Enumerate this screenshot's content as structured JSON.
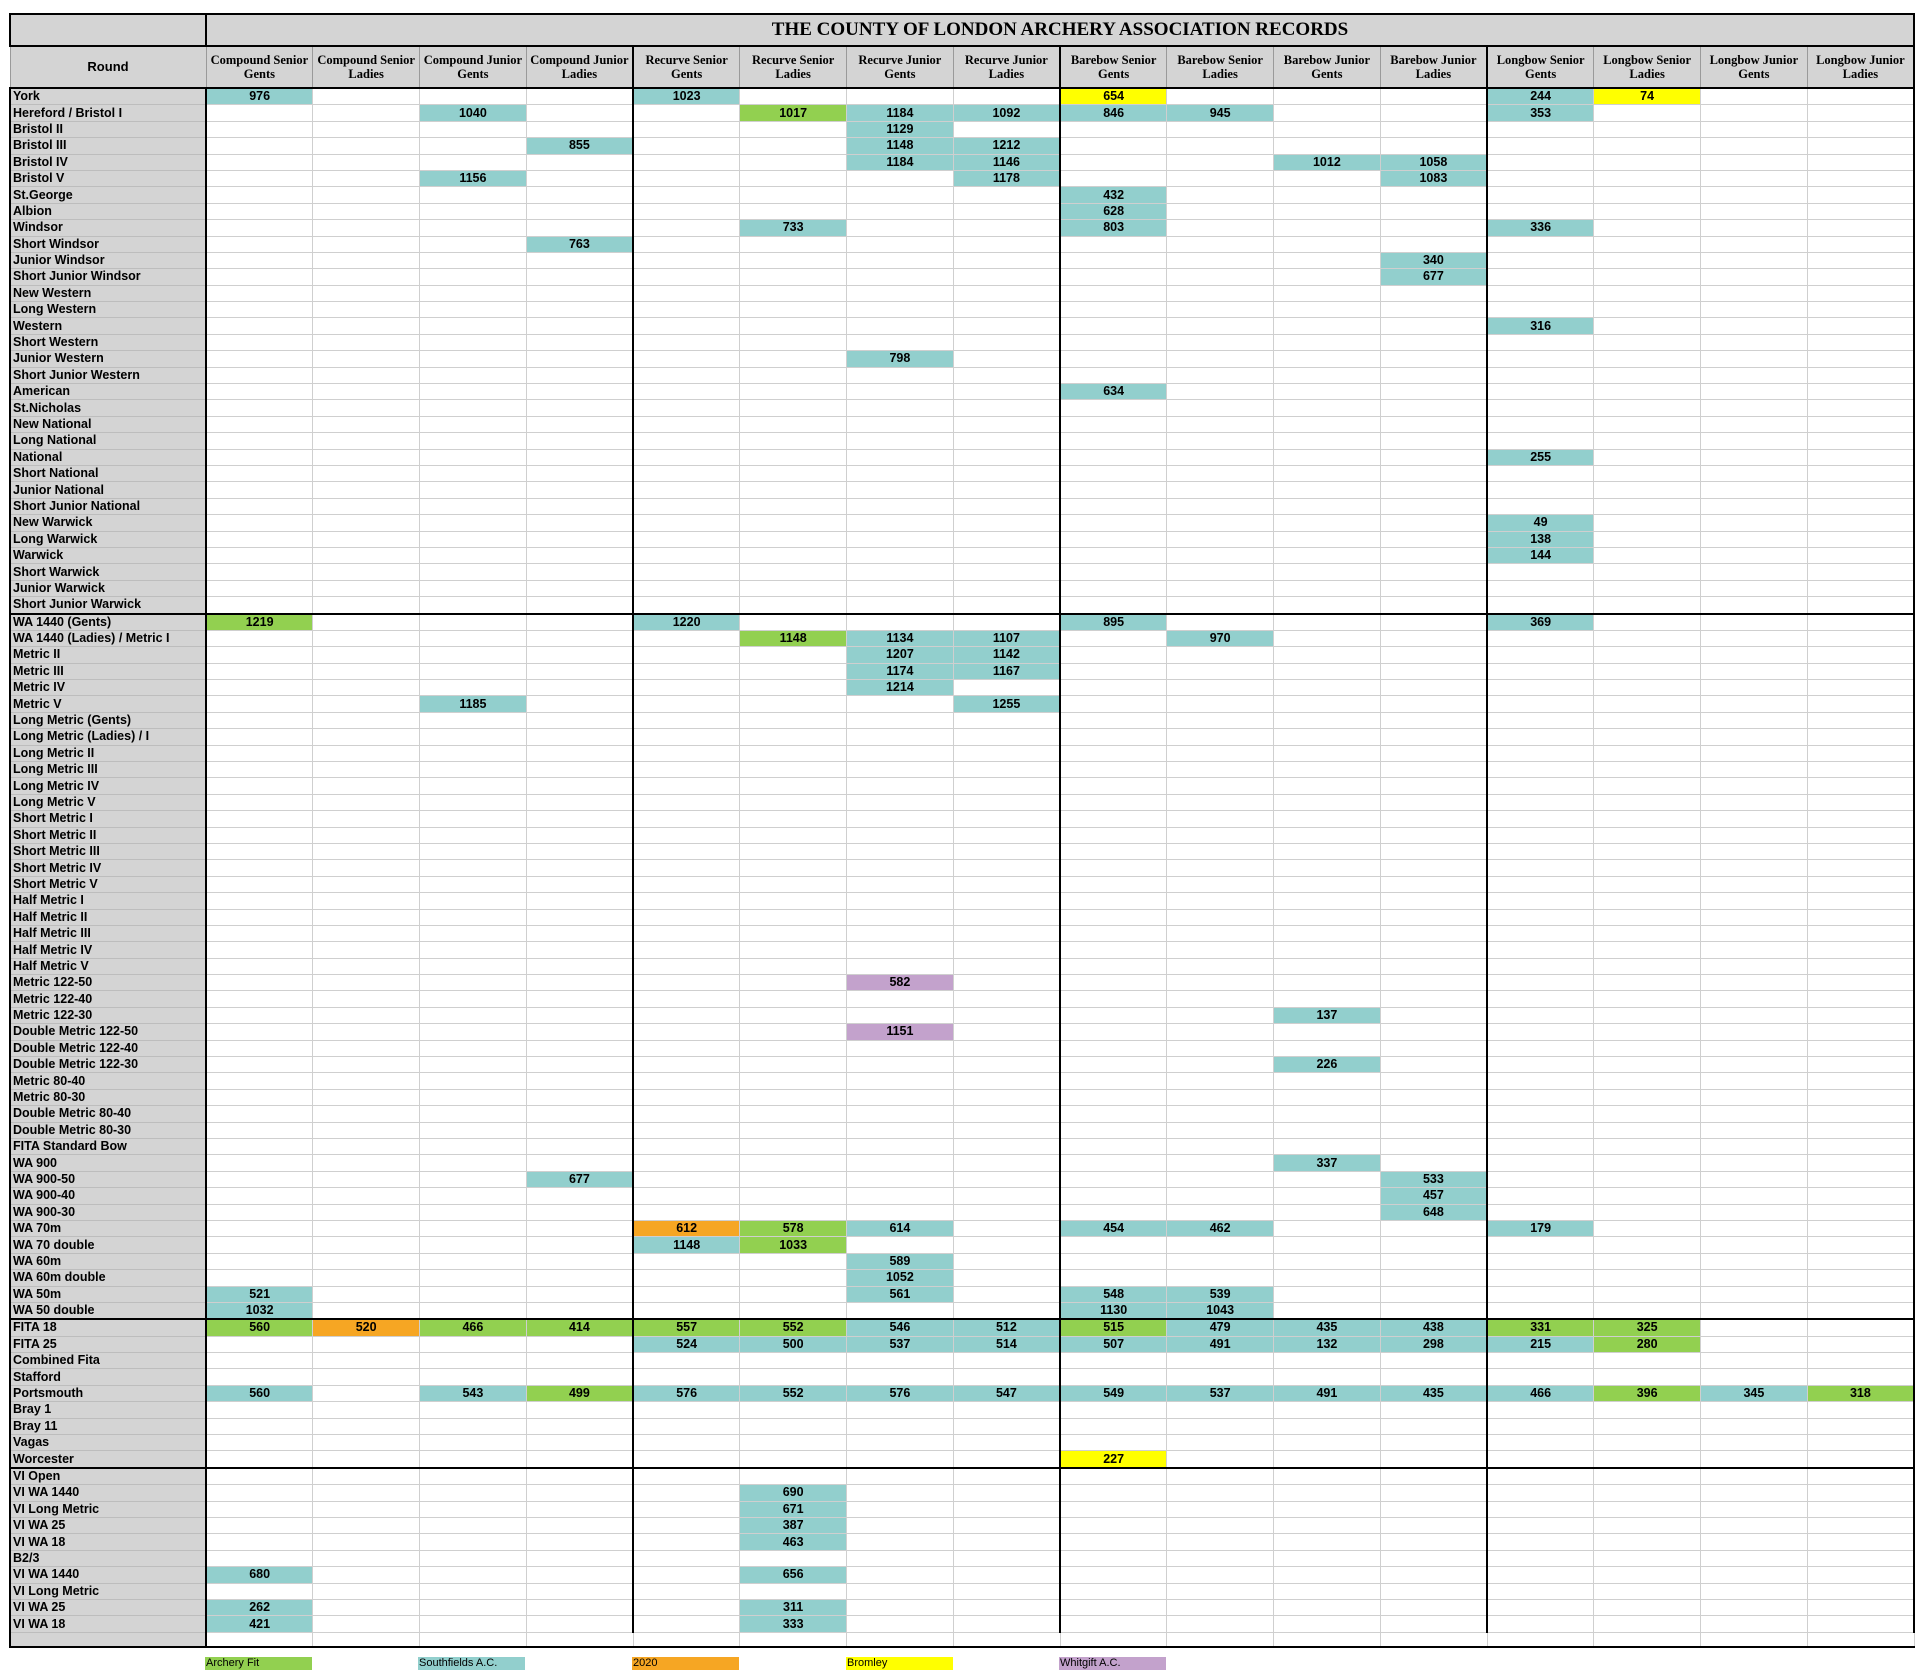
{
  "title": "THE COUNTY OF LONDON ARCHERY ASSOCIATION RECORDS",
  "round_header": "Round",
  "columns": [
    "Compound Senior Gents",
    "Compound Senior Ladies",
    "Compound Junior Gents",
    "Compound Junior Ladies",
    "Recurve Senior Gents",
    "Recurve Senior Ladies",
    "Recurve Junior Gents",
    "Recurve Junior Ladies",
    "Barebow Senior Gents",
    "Barebow Senior Ladies",
    "Barebow Junior Gents",
    "Barebow Junior Ladies",
    "Longbow Senior Gents",
    "Longbow Senior Ladies",
    "Longbow Junior Gents",
    "Longbow Junior Ladies"
  ],
  "club_colors": {
    "A": "#92d050",
    "S": "#92cfcd",
    "T": "#f6a623",
    "B": "#ffff00",
    "W": "#c3a2cc"
  },
  "legend": [
    {
      "code": "A",
      "label": "Archery Fit"
    },
    {
      "code": "S",
      "label": "Southfields A.C."
    },
    {
      "code": "T",
      "label": "2020"
    },
    {
      "code": "B",
      "label": "Bromley"
    },
    {
      "code": "W",
      "label": "Whitgift A.C."
    }
  ],
  "rows": [
    {
      "round": "York",
      "cells": {
        "0": [
          "976",
          "S"
        ],
        "4": [
          "1023",
          "S"
        ],
        "8": [
          "654",
          "B"
        ],
        "12": [
          "244",
          "S"
        ],
        "13": [
          "74",
          "B"
        ]
      }
    },
    {
      "round": "Hereford / Bristol I",
      "cells": {
        "2": [
          "1040",
          "S"
        ],
        "5": [
          "1017",
          "A"
        ],
        "6": [
          "1184",
          "S"
        ],
        "7": [
          "1092",
          "S"
        ],
        "8": [
          "846",
          "S"
        ],
        "9": [
          "945",
          "S"
        ],
        "12": [
          "353",
          "S"
        ]
      }
    },
    {
      "round": "Bristol II",
      "cells": {
        "6": [
          "1129",
          "S"
        ]
      }
    },
    {
      "round": "Bristol III",
      "cells": {
        "3": [
          "855",
          "S"
        ],
        "6": [
          "1148",
          "S"
        ],
        "7": [
          "1212",
          "S"
        ]
      }
    },
    {
      "round": "Bristol IV",
      "cells": {
        "6": [
          "1184",
          "S"
        ],
        "7": [
          "1146",
          "S"
        ],
        "10": [
          "1012",
          "S"
        ],
        "11": [
          "1058",
          "S"
        ]
      }
    },
    {
      "round": "Bristol V",
      "cells": {
        "2": [
          "1156",
          "S"
        ],
        "7": [
          "1178",
          "S"
        ],
        "11": [
          "1083",
          "S"
        ]
      }
    },
    {
      "round": "St.George",
      "cells": {
        "8": [
          "432",
          "S"
        ]
      }
    },
    {
      "round": "Albion",
      "cells": {
        "8": [
          "628",
          "S"
        ]
      }
    },
    {
      "round": "Windsor",
      "cells": {
        "5": [
          "733",
          "S"
        ],
        "8": [
          "803",
          "S"
        ],
        "12": [
          "336",
          "S"
        ]
      }
    },
    {
      "round": "Short Windsor",
      "cells": {
        "3": [
          "763",
          "S"
        ]
      }
    },
    {
      "round": "Junior Windsor",
      "cells": {
        "11": [
          "340",
          "S"
        ]
      }
    },
    {
      "round": "Short Junior Windsor",
      "cells": {
        "11": [
          "677",
          "S"
        ]
      }
    },
    {
      "round": "New Western",
      "cells": {}
    },
    {
      "round": "Long Western",
      "cells": {}
    },
    {
      "round": "Western",
      "cells": {
        "12": [
          "316",
          "S"
        ]
      }
    },
    {
      "round": "Short Western",
      "cells": {}
    },
    {
      "round": "Junior Western",
      "cells": {
        "6": [
          "798",
          "S"
        ]
      }
    },
    {
      "round": "Short Junior Western",
      "cells": {}
    },
    {
      "round": "American",
      "cells": {
        "8": [
          "634",
          "S"
        ]
      }
    },
    {
      "round": "St.Nicholas",
      "cells": {}
    },
    {
      "round": "New National",
      "cells": {}
    },
    {
      "round": "Long National",
      "cells": {}
    },
    {
      "round": "National",
      "cells": {
        "12": [
          "255",
          "S"
        ]
      }
    },
    {
      "round": "Short National",
      "cells": {}
    },
    {
      "round": "Junior National",
      "cells": {}
    },
    {
      "round": "Short Junior National",
      "cells": {}
    },
    {
      "round": "New Warwick",
      "cells": {
        "12": [
          "49",
          "S"
        ]
      }
    },
    {
      "round": "Long Warwick",
      "cells": {
        "12": [
          "138",
          "S"
        ]
      }
    },
    {
      "round": "Warwick",
      "cells": {
        "12": [
          "144",
          "S"
        ]
      }
    },
    {
      "round": "Short Warwick",
      "cells": {}
    },
    {
      "round": "Junior Warwick",
      "cells": {}
    },
    {
      "round": "Short Junior Warwick",
      "cells": {}
    },
    {
      "round": "WA 1440 (Gents)",
      "section_start": true,
      "cells": {
        "0": [
          "1219",
          "A"
        ],
        "4": [
          "1220",
          "S"
        ],
        "8": [
          "895",
          "S"
        ],
        "12": [
          "369",
          "S"
        ]
      }
    },
    {
      "round": "WA 1440 (Ladies) / Metric I",
      "cells": {
        "5": [
          "1148",
          "A"
        ],
        "6": [
          "1134",
          "S"
        ],
        "7": [
          "1107",
          "S"
        ],
        "9": [
          "970",
          "S"
        ]
      }
    },
    {
      "round": "Metric II",
      "cells": {
        "6": [
          "1207",
          "S"
        ],
        "7": [
          "1142",
          "S"
        ]
      }
    },
    {
      "round": "Metric III",
      "cells": {
        "6": [
          "1174",
          "S"
        ],
        "7": [
          "1167",
          "S"
        ]
      }
    },
    {
      "round": "Metric IV",
      "cells": {
        "6": [
          "1214",
          "S"
        ]
      }
    },
    {
      "round": "Metric V",
      "cells": {
        "2": [
          "1185",
          "S"
        ],
        "7": [
          "1255",
          "S"
        ]
      }
    },
    {
      "round": "Long Metric (Gents)",
      "cells": {}
    },
    {
      "round": "Long Metric (Ladies) / I",
      "cells": {}
    },
    {
      "round": "Long Metric II",
      "cells": {}
    },
    {
      "round": "Long Metric III",
      "cells": {}
    },
    {
      "round": "Long Metric IV",
      "cells": {}
    },
    {
      "round": "Long Metric V",
      "cells": {}
    },
    {
      "round": "Short Metric I",
      "cells": {}
    },
    {
      "round": "Short Metric II",
      "cells": {}
    },
    {
      "round": "Short Metric III",
      "cells": {}
    },
    {
      "round": "Short Metric IV",
      "cells": {}
    },
    {
      "round": "Short Metric V",
      "cells": {}
    },
    {
      "round": "Half Metric I",
      "cells": {}
    },
    {
      "round": "Half Metric II",
      "cells": {}
    },
    {
      "round": "Half Metric III",
      "cells": {}
    },
    {
      "round": "Half Metric IV",
      "cells": {}
    },
    {
      "round": "Half Metric V",
      "cells": {}
    },
    {
      "round": "Metric 122-50",
      "cells": {
        "6": [
          "582",
          "W"
        ]
      }
    },
    {
      "round": "Metric 122-40",
      "cells": {}
    },
    {
      "round": "Metric 122-30",
      "cells": {
        "10": [
          "137",
          "S"
        ]
      }
    },
    {
      "round": "Double Metric 122-50",
      "cells": {
        "6": [
          "1151",
          "W"
        ]
      }
    },
    {
      "round": "Double Metric 122-40",
      "cells": {}
    },
    {
      "round": "Double Metric 122-30",
      "cells": {
        "10": [
          "226",
          "S"
        ]
      }
    },
    {
      "round": "Metric 80-40",
      "cells": {}
    },
    {
      "round": "Metric 80-30",
      "cells": {}
    },
    {
      "round": "Double Metric 80-40",
      "cells": {}
    },
    {
      "round": "Double Metric 80-30",
      "cells": {}
    },
    {
      "round": "FITA Standard Bow",
      "cells": {}
    },
    {
      "round": "WA 900",
      "cells": {
        "10": [
          "337",
          "S"
        ]
      }
    },
    {
      "round": "WA 900-50",
      "cells": {
        "3": [
          "677",
          "S"
        ],
        "11": [
          "533",
          "S"
        ]
      }
    },
    {
      "round": "WA 900-40",
      "cells": {
        "11": [
          "457",
          "S"
        ]
      }
    },
    {
      "round": "WA 900-30",
      "cells": {
        "11": [
          "648",
          "S"
        ]
      }
    },
    {
      "round": "WA 70m",
      "cells": {
        "4": [
          "612",
          "T"
        ],
        "5": [
          "578",
          "A"
        ],
        "6": [
          "614",
          "S"
        ],
        "8": [
          "454",
          "S"
        ],
        "9": [
          "462",
          "S"
        ],
        "12": [
          "179",
          "S"
        ]
      }
    },
    {
      "round": "WA 70 double",
      "cells": {
        "4": [
          "1148",
          "S"
        ],
        "5": [
          "1033",
          "A"
        ]
      }
    },
    {
      "round": "WA 60m",
      "cells": {
        "6": [
          "589",
          "S"
        ]
      }
    },
    {
      "round": "WA 60m double",
      "cells": {
        "6": [
          "1052",
          "S"
        ]
      }
    },
    {
      "round": "WA 50m",
      "cells": {
        "0": [
          "521",
          "S"
        ],
        "6": [
          "561",
          "S"
        ],
        "8": [
          "548",
          "S"
        ],
        "9": [
          "539",
          "S"
        ]
      }
    },
    {
      "round": "WA 50 double",
      "cells": {
        "0": [
          "1032",
          "S"
        ],
        "8": [
          "1130",
          "S"
        ],
        "9": [
          "1043",
          "S"
        ]
      }
    },
    {
      "round": "FITA 18",
      "section_start": true,
      "cells": {
        "0": [
          "560",
          "A"
        ],
        "1": [
          "520",
          "T"
        ],
        "2": [
          "466",
          "A"
        ],
        "3": [
          "414",
          "A"
        ],
        "4": [
          "557",
          "A"
        ],
        "5": [
          "552",
          "A"
        ],
        "6": [
          "546",
          "S"
        ],
        "7": [
          "512",
          "S"
        ],
        "8": [
          "515",
          "A"
        ],
        "9": [
          "479",
          "S"
        ],
        "10": [
          "435",
          "S"
        ],
        "11": [
          "438",
          "S"
        ],
        "12": [
          "331",
          "A"
        ],
        "13": [
          "325",
          "A"
        ]
      }
    },
    {
      "round": "FITA 25",
      "cells": {
        "4": [
          "524",
          "S"
        ],
        "5": [
          "500",
          "S"
        ],
        "6": [
          "537",
          "S"
        ],
        "7": [
          "514",
          "S"
        ],
        "8": [
          "507",
          "S"
        ],
        "9": [
          "491",
          "S"
        ],
        "10": [
          "132",
          "S"
        ],
        "11": [
          "298",
          "S"
        ],
        "12": [
          "215",
          "S"
        ],
        "13": [
          "280",
          "A"
        ]
      }
    },
    {
      "round": "Combined Fita",
      "cells": {}
    },
    {
      "round": "Stafford",
      "cells": {}
    },
    {
      "round": "Portsmouth",
      "cells": {
        "0": [
          "560",
          "S"
        ],
        "2": [
          "543",
          "S"
        ],
        "3": [
          "499",
          "A"
        ],
        "4": [
          "576",
          "S"
        ],
        "5": [
          "552",
          "S"
        ],
        "6": [
          "576",
          "S"
        ],
        "7": [
          "547",
          "S"
        ],
        "8": [
          "549",
          "S"
        ],
        "9": [
          "537",
          "S"
        ],
        "10": [
          "491",
          "S"
        ],
        "11": [
          "435",
          "S"
        ],
        "12": [
          "466",
          "S"
        ],
        "13": [
          "396",
          "A"
        ],
        "14": [
          "345",
          "S"
        ],
        "15": [
          "318",
          "A"
        ]
      }
    },
    {
      "round": "Bray 1",
      "cells": {}
    },
    {
      "round": "Bray 11",
      "cells": {}
    },
    {
      "round": "Vagas",
      "cells": {}
    },
    {
      "round": "Worcester",
      "cells": {
        "8": [
          "227",
          "B"
        ]
      }
    },
    {
      "round": "VI Open",
      "section_start": true,
      "cells": {}
    },
    {
      "round": "VI WA 1440",
      "cells": {
        "5": [
          "690",
          "S"
        ]
      }
    },
    {
      "round": "VI Long Metric",
      "cells": {
        "5": [
          "671",
          "S"
        ]
      }
    },
    {
      "round": "VI WA 25",
      "cells": {
        "5": [
          "387",
          "S"
        ]
      }
    },
    {
      "round": "VI WA 18",
      "cells": {
        "5": [
          "463",
          "S"
        ]
      }
    },
    {
      "round": "B2/3",
      "cells": {}
    },
    {
      "round": "VI WA 1440",
      "cells": {
        "0": [
          "680",
          "S"
        ],
        "5": [
          "656",
          "S"
        ]
      }
    },
    {
      "round": "VI Long Metric",
      "cells": {}
    },
    {
      "round": "VI WA 25",
      "cells": {
        "0": [
          "262",
          "S"
        ],
        "5": [
          "311",
          "S"
        ]
      }
    },
    {
      "round": "VI WA 18",
      "cells": {
        "0": [
          "421",
          "S"
        ],
        "5": [
          "333",
          "S"
        ]
      }
    }
  ]
}
